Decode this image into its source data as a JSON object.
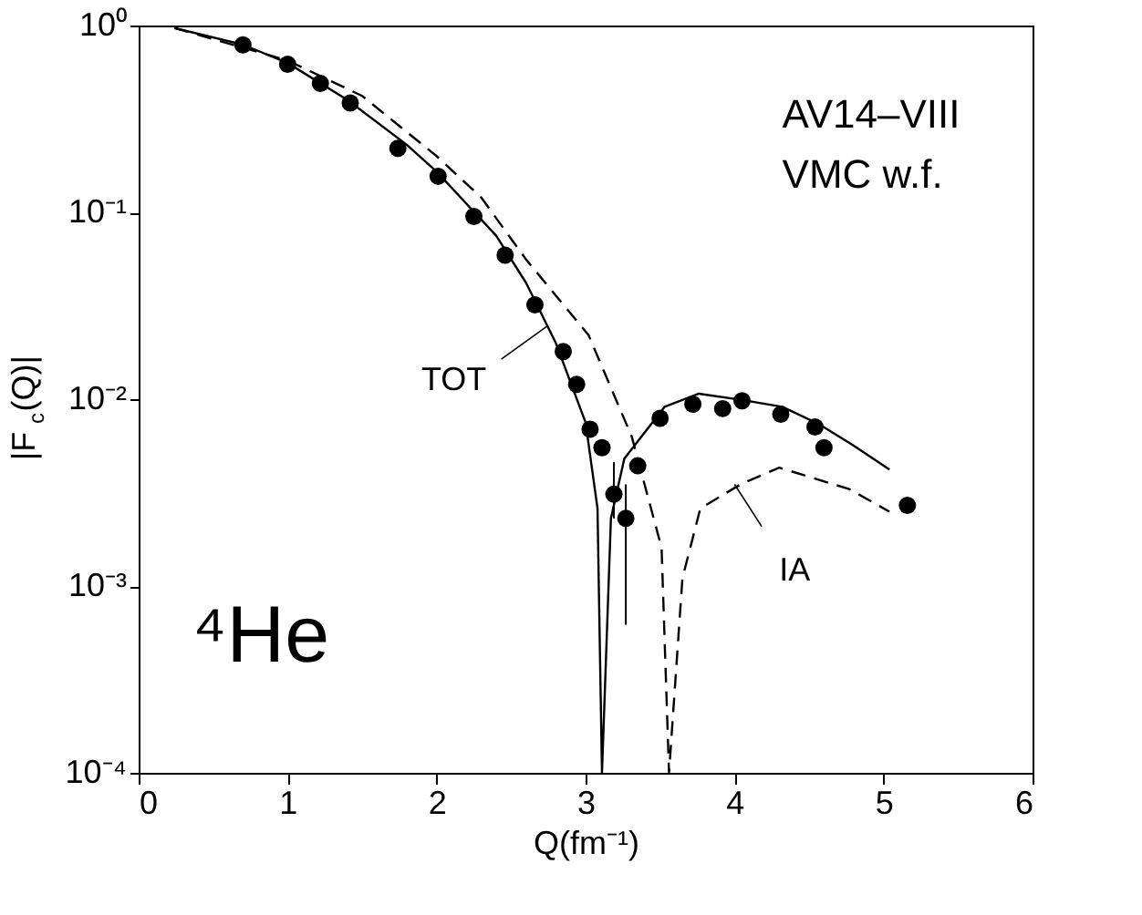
{
  "chart_data": {
    "type": "scatter",
    "xlabel": "Q(fm⁻¹)",
    "ylabel": "|F$_{c}$(Q)|",
    "log": true,
    "xlim": [
      0,
      6
    ],
    "xticks": [
      0,
      1,
      2,
      3,
      4,
      5,
      6
    ],
    "ylim": [
      0.0001,
      1
    ],
    "yticks": [
      {
        "value": 0.0001,
        "label": "10⁻⁴"
      },
      {
        "value": 0.001,
        "label": "10⁻³"
      },
      {
        "value": 0.01,
        "label": "10⁻²"
      },
      {
        "value": 0.1,
        "label": "10⁻¹"
      },
      {
        "value": 1,
        "label": "10⁰"
      }
    ],
    "grid": false,
    "series": [
      {
        "type": "line",
        "line_style": "solid",
        "marker": "none",
        "color": "#000000",
        "x": [
          0.24,
          0.7,
          1.0,
          1.4,
          1.8,
          2.0,
          2.4,
          2.6,
          2.8,
          3.0,
          3.08,
          3.11,
          3.17,
          3.26,
          3.53,
          3.76,
          4.05,
          4.32,
          4.56,
          4.79,
          5.04
        ],
        "values": [
          0.97,
          0.79,
          0.63,
          0.4,
          0.23,
          0.165,
          0.075,
          0.042,
          0.02,
          0.0075,
          0.0026,
          0.0001,
          0.0023,
          0.0048,
          0.0091,
          0.0107,
          0.0099,
          0.0091,
          0.0074,
          0.0057,
          0.0042
        ]
      },
      {
        "type": "line",
        "line_style": "dashed",
        "marker": "none",
        "color": "#000000",
        "x": [
          0.24,
          1.0,
          1.5,
          2.0,
          2.3,
          2.6,
          3.02,
          3.31,
          3.51,
          3.56,
          3.65,
          3.77,
          4.04,
          4.3,
          4.77,
          5.04
        ],
        "values": [
          0.97,
          0.65,
          0.42,
          0.2,
          0.12,
          0.056,
          0.022,
          0.0063,
          0.0016,
          0.0001,
          0.0011,
          0.0026,
          0.0035,
          0.0043,
          0.0033,
          0.0025
        ]
      },
      {
        "marker": "circle",
        "color": "#000000",
        "x": [
          0.7,
          1.0,
          1.22,
          1.42,
          1.74,
          2.01,
          2.25,
          2.46,
          2.66,
          2.85,
          2.94,
          3.03,
          3.11,
          3.19,
          3.27,
          3.35,
          3.5,
          3.72,
          3.92,
          4.05,
          4.31,
          4.54,
          4.6,
          5.16
        ],
        "values": [
          0.787,
          0.62,
          0.49,
          0.385,
          0.22,
          0.156,
          0.095,
          0.059,
          0.032,
          0.018,
          0.012,
          0.0069,
          0.0055,
          0.0031,
          0.0023,
          0.0044,
          0.0079,
          0.0094,
          0.0089,
          0.0098,
          0.0083,
          0.0071,
          0.0055,
          0.0027
        ],
        "errors": [
          null,
          null,
          null,
          null,
          null,
          null,
          null,
          null,
          null,
          null,
          null,
          null,
          null,
          [
            0.0023,
            0.0046
          ],
          [
            0.00062,
            0.0035
          ],
          null,
          null,
          null,
          null,
          null,
          null,
          null,
          null,
          null
        ]
      }
    ],
    "annotations": [
      {
        "text": "TOT",
        "x": 2.74,
        "y": 0.0245
      },
      {
        "text": "IA",
        "x": 4.0,
        "y": 0.0035
      },
      "AV14–VIII",
      "VMC w.f.",
      "⁴He"
    ]
  }
}
